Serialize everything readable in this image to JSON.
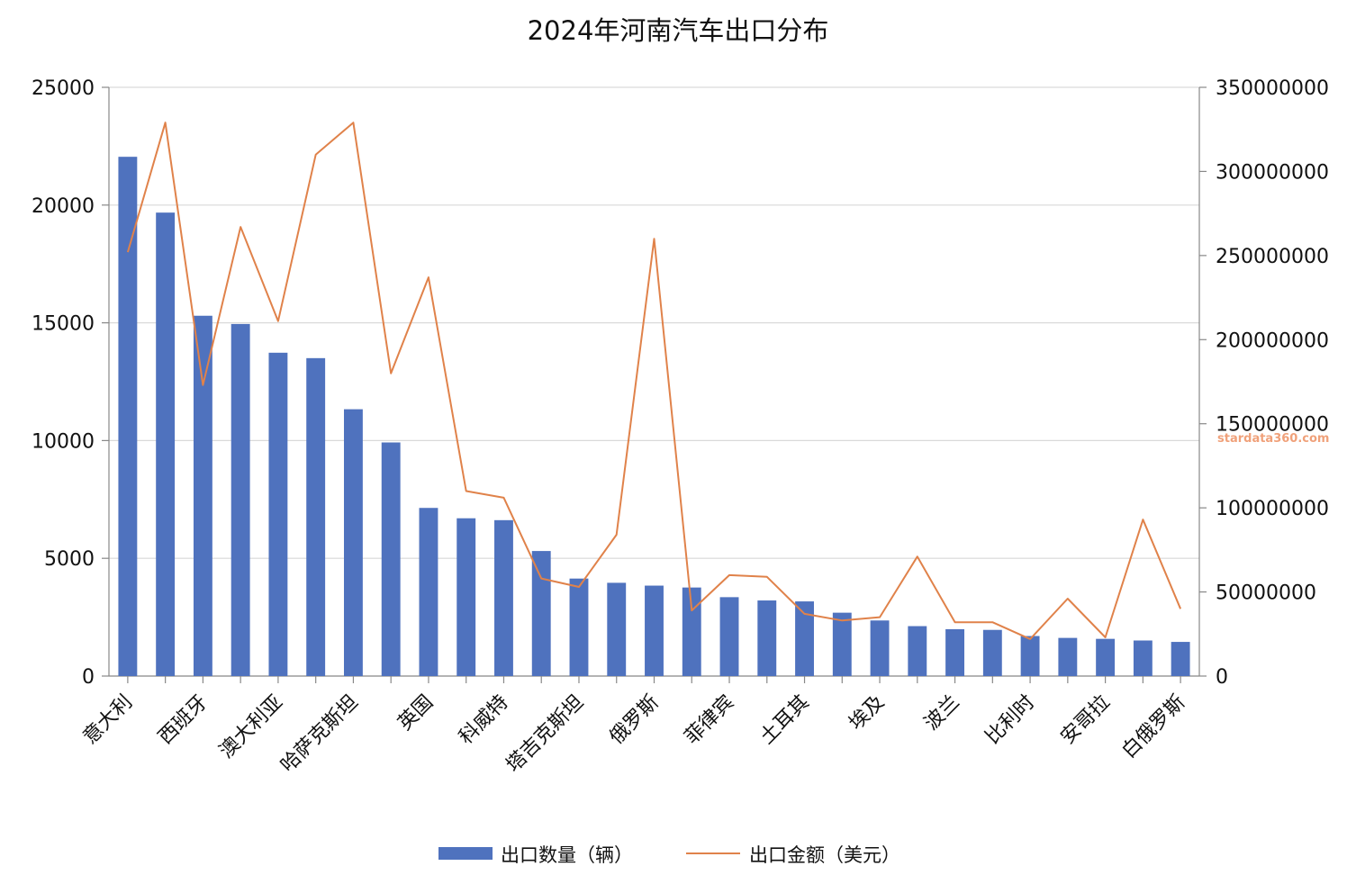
{
  "chart_data": {
    "type": "bar",
    "title": "2024年河南汽车出口分布",
    "watermark": "stardata360.com",
    "categories": [
      "意大利",
      "",
      "西班牙",
      "",
      "澳大利亚",
      "",
      "哈萨克斯坦",
      "",
      "英国",
      "",
      "科威特",
      "",
      "塔吉克斯坦",
      "",
      "俄罗斯",
      "",
      "菲律宾",
      "",
      "土耳其",
      "",
      "埃及",
      "",
      "波兰",
      "",
      "比利时",
      "",
      "安哥拉",
      "",
      "白俄罗斯"
    ],
    "series": [
      {
        "name": "出口数量（辆）",
        "type": "bar",
        "axis": "left",
        "color": "#4f72be",
        "values": [
          22050,
          19680,
          15300,
          14950,
          13730,
          13500,
          11330,
          9920,
          7140,
          6700,
          6620,
          5310,
          4140,
          3960,
          3840,
          3760,
          3350,
          3210,
          3170,
          2690,
          2360,
          2120,
          1990,
          1960,
          1700,
          1620,
          1580,
          1510,
          1450
        ]
      },
      {
        "name": "出口金额（美元）",
        "type": "line",
        "axis": "right",
        "color": "#e0824a",
        "values": [
          252000000,
          329000000,
          173000000,
          267000000,
          211000000,
          310000000,
          329000000,
          180000000,
          237000000,
          110000000,
          106000000,
          58000000,
          53000000,
          84000000,
          260000000,
          39000000,
          60000000,
          59000000,
          37000000,
          33000000,
          35000000,
          71000000,
          32000000,
          32000000,
          22000000,
          46000000,
          23000000,
          93000000,
          40000000
        ]
      }
    ],
    "y_left": {
      "min": 0,
      "max": 25000,
      "ticks": [
        0,
        5000,
        10000,
        15000,
        20000,
        25000
      ]
    },
    "y_right": {
      "min": 0,
      "max": 350000000,
      "ticks": [
        0,
        50000000,
        100000000,
        150000000,
        200000000,
        250000000,
        300000000,
        350000000
      ]
    },
    "grid": true,
    "legend_position": "bottom"
  }
}
